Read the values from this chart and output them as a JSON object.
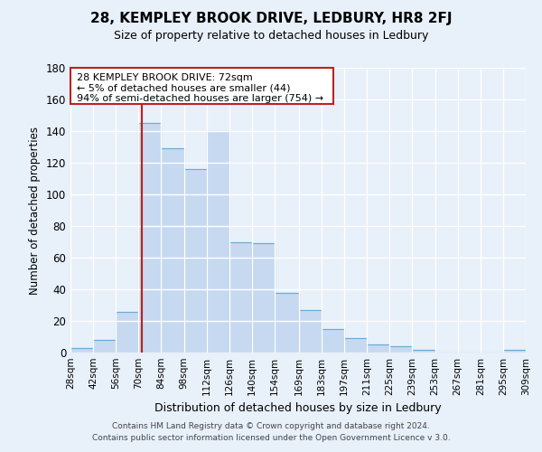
{
  "title": "28, KEMPLEY BROOK DRIVE, LEDBURY, HR8 2FJ",
  "subtitle": "Size of property relative to detached houses in Ledbury",
  "xlabel": "Distribution of detached houses by size in Ledbury",
  "ylabel": "Number of detached properties",
  "bar_color": "#c6d9f0",
  "bar_edge_color": "#6aaad4",
  "background_color": "#e8f0fa",
  "grid_color": "#ffffff",
  "annotation_box_color": "#ffffff",
  "annotation_border_color": "#bb2222",
  "vline_color": "#bb2222",
  "vline_x": 72,
  "bin_edges": [
    28,
    42,
    56,
    70,
    84,
    98,
    112,
    126,
    140,
    154,
    169,
    183,
    197,
    211,
    225,
    239,
    253,
    267,
    281,
    295,
    309
  ],
  "bar_heights": [
    3,
    8,
    26,
    145,
    129,
    116,
    140,
    70,
    69,
    38,
    27,
    15,
    9,
    5,
    4,
    2,
    0,
    0,
    0,
    2
  ],
  "ylim": [
    0,
    180
  ],
  "yticks": [
    0,
    20,
    40,
    60,
    80,
    100,
    120,
    140,
    160,
    180
  ],
  "annotation_line1": "28 KEMPLEY BROOK DRIVE: 72sqm",
  "annotation_line2": "← 5% of detached houses are smaller (44)",
  "annotation_line3": "94% of semi-detached houses are larger (754) →",
  "footer_line1": "Contains HM Land Registry data © Crown copyright and database right 2024.",
  "footer_line2": "Contains public sector information licensed under the Open Government Licence v 3.0."
}
